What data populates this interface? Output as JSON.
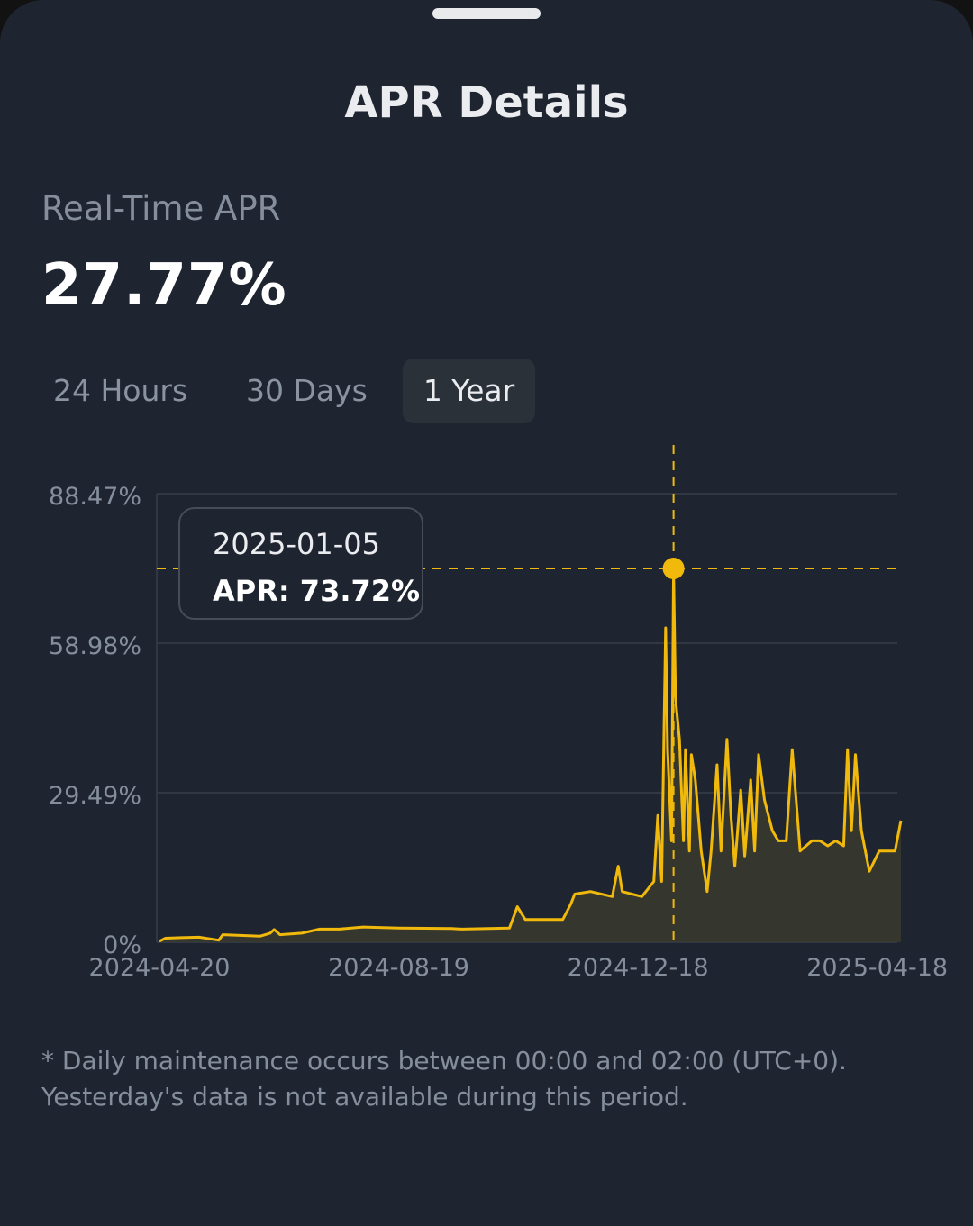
{
  "sheet": {
    "title": "APR Details"
  },
  "realtime": {
    "label": "Real-Time APR",
    "value": "27.77%"
  },
  "tabs": [
    {
      "label": "24 Hours",
      "active": false
    },
    {
      "label": "30 Days",
      "active": false
    },
    {
      "label": "1 Year",
      "active": true
    }
  ],
  "tooltip": {
    "date": "2025-01-05",
    "apr": "APR: 73.72%"
  },
  "note": {
    "line1": "* Daily maintenance occurs between 00:00 and 02:00 (UTC+0).",
    "line2": "Yesterday's data is not available during this period."
  },
  "colors": {
    "accent": "#f0b90b",
    "background": "#1f2530",
    "grid": "#323843",
    "label": "#848e9c"
  },
  "chart_data": {
    "type": "area",
    "x_start": "2024-04-20",
    "x_end": "2025-04-30",
    "x_tick_labels": [
      "2024-04-20",
      "2024-08-19",
      "2024-12-18",
      "2025-04-18"
    ],
    "y_tick_labels": [
      "0%",
      "29.49%",
      "58.98%",
      "88.47%"
    ],
    "ylim": [
      0,
      88.47
    ],
    "grid": true,
    "highlight": {
      "date": "2025-01-05",
      "value": 73.72
    },
    "series": [
      {
        "color": "#f0b90b",
        "points": [
          [
            "2024-04-20",
            0.2
          ],
          [
            "2024-04-23",
            0.8
          ],
          [
            "2024-05-01",
            0.9
          ],
          [
            "2024-05-10",
            1.0
          ],
          [
            "2024-05-20",
            0.4
          ],
          [
            "2024-05-22",
            1.5
          ],
          [
            "2024-06-10",
            1.2
          ],
          [
            "2024-06-15",
            1.8
          ],
          [
            "2024-06-17",
            2.5
          ],
          [
            "2024-06-20",
            1.5
          ],
          [
            "2024-07-01",
            1.8
          ],
          [
            "2024-07-10",
            2.6
          ],
          [
            "2024-07-20",
            2.6
          ],
          [
            "2024-08-01",
            3.0
          ],
          [
            "2024-08-19",
            2.8
          ],
          [
            "2024-09-15",
            2.7
          ],
          [
            "2024-09-20",
            2.6
          ],
          [
            "2024-10-14",
            2.8
          ],
          [
            "2024-10-18",
            7.0
          ],
          [
            "2024-10-22",
            4.5
          ],
          [
            "2024-11-10",
            4.5
          ],
          [
            "2024-11-14",
            7.5
          ],
          [
            "2024-11-16",
            9.5
          ],
          [
            "2024-11-24",
            10.0
          ],
          [
            "2024-12-05",
            9.0
          ],
          [
            "2024-12-08",
            15.0
          ],
          [
            "2024-12-10",
            10.0
          ],
          [
            "2024-12-20",
            9.0
          ],
          [
            "2024-12-26",
            12.0
          ],
          [
            "2024-12-28",
            25.0
          ],
          [
            "2024-12-30",
            12.0
          ],
          [
            "2025-01-01",
            62.0
          ],
          [
            "2025-01-02",
            38.0
          ],
          [
            "2025-01-04",
            20.0
          ],
          [
            "2025-01-05",
            73.72
          ],
          [
            "2025-01-06",
            48.0
          ],
          [
            "2025-01-08",
            40.0
          ],
          [
            "2025-01-10",
            20.0
          ],
          [
            "2025-01-11",
            38.0
          ],
          [
            "2025-01-13",
            18.0
          ],
          [
            "2025-01-14",
            37.0
          ],
          [
            "2025-01-16",
            32.0
          ],
          [
            "2025-01-19",
            18.0
          ],
          [
            "2025-01-22",
            10.0
          ],
          [
            "2025-01-24",
            18.0
          ],
          [
            "2025-01-27",
            35.0
          ],
          [
            "2025-01-29",
            18.0
          ],
          [
            "2025-02-01",
            40.0
          ],
          [
            "2025-02-03",
            25.0
          ],
          [
            "2025-02-05",
            15.0
          ],
          [
            "2025-02-08",
            30.0
          ],
          [
            "2025-02-10",
            17.0
          ],
          [
            "2025-02-13",
            32.0
          ],
          [
            "2025-02-15",
            18.0
          ],
          [
            "2025-02-17",
            37.0
          ],
          [
            "2025-02-20",
            28.0
          ],
          [
            "2025-02-24",
            22.0
          ],
          [
            "2025-02-27",
            20.0
          ],
          [
            "2025-03-03",
            20.0
          ],
          [
            "2025-03-06",
            38.0
          ],
          [
            "2025-03-10",
            18.0
          ],
          [
            "2025-03-16",
            20.0
          ],
          [
            "2025-03-20",
            20.0
          ],
          [
            "2025-03-24",
            19.0
          ],
          [
            "2025-03-28",
            20.0
          ],
          [
            "2025-04-01",
            19.0
          ],
          [
            "2025-04-03",
            38.0
          ],
          [
            "2025-04-05",
            22.0
          ],
          [
            "2025-04-07",
            37.0
          ],
          [
            "2025-04-10",
            22.0
          ],
          [
            "2025-04-14",
            14.0
          ],
          [
            "2025-04-19",
            18.0
          ],
          [
            "2025-04-27",
            18.0
          ],
          [
            "2025-04-30",
            24.0
          ]
        ]
      }
    ]
  }
}
